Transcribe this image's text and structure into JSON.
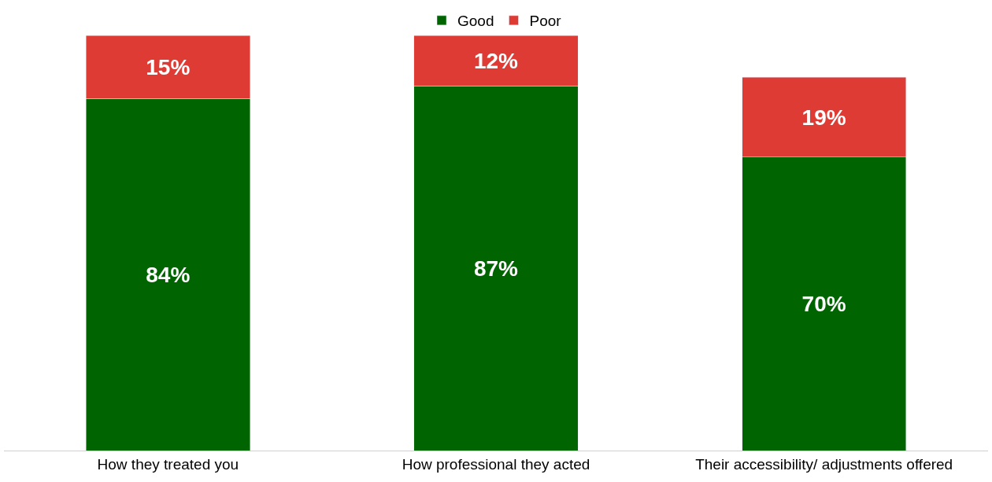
{
  "chart_data": {
    "type": "bar",
    "stacked": true,
    "categories": [
      "How they treated you",
      "How professional they acted",
      "Their accessibility/ adjustments offered"
    ],
    "series": [
      {
        "name": "Good",
        "color": "#006400",
        "values": [
          84,
          87,
          70
        ],
        "value_labels": [
          "84%",
          "87%",
          "70%"
        ]
      },
      {
        "name": "Poor",
        "color": "#de3b34",
        "values": [
          15,
          12,
          19
        ],
        "value_labels": [
          "15%",
          "12%",
          "19%"
        ]
      }
    ],
    "legend": "top"
  }
}
